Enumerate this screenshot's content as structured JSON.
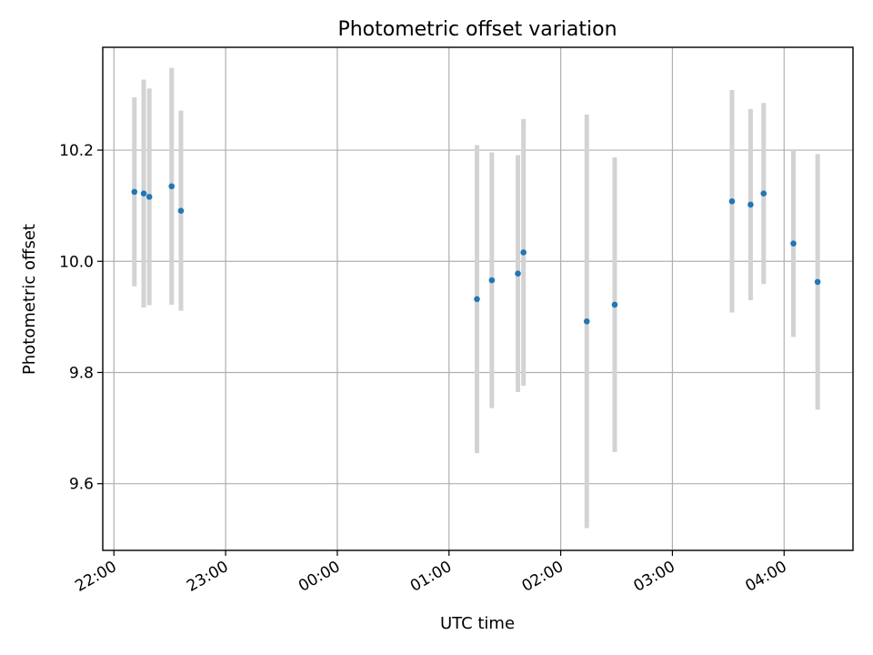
{
  "chart_data": {
    "type": "scatter",
    "title": "Photometric offset variation",
    "xlabel": "UTC time",
    "ylabel": "Photometric offset",
    "x_axis_type": "time",
    "xlim": [
      "21:54",
      "04:37"
    ],
    "ylim": [
      9.48,
      10.385
    ],
    "x_ticks": [
      "22:00",
      "23:00",
      "00:00",
      "01:00",
      "02:00",
      "03:00",
      "04:00"
    ],
    "y_ticks": [
      9.6,
      9.8,
      10.0,
      10.2
    ],
    "y_tick_labels": [
      "9.6",
      "9.8",
      "10.0",
      "10.2"
    ],
    "grid": true,
    "x_tick_label_rotation": "30 degrees",
    "series": [
      {
        "marker_color": "#1f77b4",
        "errorbar_color": "#d3d3d3",
        "points": [
          {
            "time": "22:11",
            "y": 10.125,
            "err": 0.17
          },
          {
            "time": "22:16",
            "y": 10.122,
            "err": 0.205
          },
          {
            "time": "22:19",
            "y": 10.116,
            "err": 0.195
          },
          {
            "time": "22:31",
            "y": 10.135,
            "err": 0.213
          },
          {
            "time": "22:36",
            "y": 10.091,
            "err": 0.18
          },
          {
            "time": "01:15",
            "y": 9.932,
            "err": 0.277
          },
          {
            "time": "01:23",
            "y": 9.966,
            "err": 0.23
          },
          {
            "time": "01:37",
            "y": 9.978,
            "err": 0.213
          },
          {
            "time": "01:40",
            "y": 10.016,
            "err": 0.24
          },
          {
            "time": "02:14",
            "y": 9.892,
            "err": 0.372
          },
          {
            "time": "02:29",
            "y": 9.922,
            "err": 0.265
          },
          {
            "time": "03:32",
            "y": 10.108,
            "err": 0.2
          },
          {
            "time": "03:42",
            "y": 10.102,
            "err": 0.172
          },
          {
            "time": "03:49",
            "y": 10.122,
            "err": 0.163
          },
          {
            "time": "04:05",
            "y": 10.032,
            "err": 0.168
          },
          {
            "time": "04:18",
            "y": 9.963,
            "err": 0.23
          }
        ]
      }
    ]
  }
}
